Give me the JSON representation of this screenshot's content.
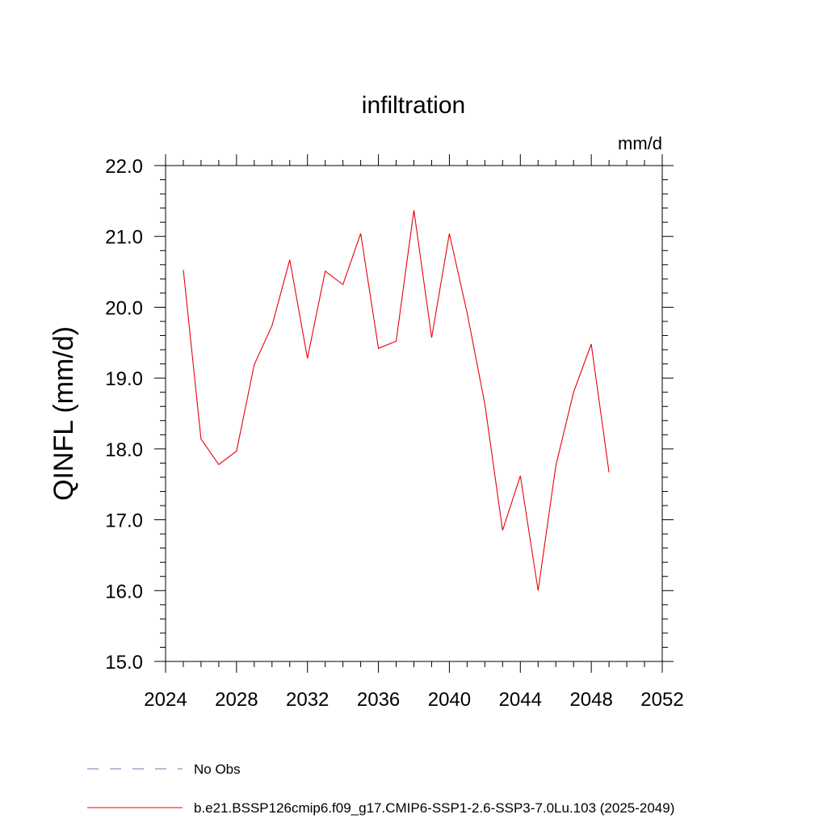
{
  "chart_data": {
    "type": "line",
    "title": "infiltration",
    "units": "mm/d",
    "ylabel": "QINFL  (mm/d)",
    "xlabel": "",
    "xlim": [
      2024,
      2052
    ],
    "ylim": [
      15.0,
      22.0
    ],
    "x_ticks": [
      2024,
      2028,
      2032,
      2036,
      2040,
      2044,
      2048,
      2052
    ],
    "x_tick_labels": [
      "2024",
      "2028",
      "2032",
      "2036",
      "2040",
      "2044",
      "2048",
      "2052"
    ],
    "y_ticks": [
      15.0,
      16.0,
      17.0,
      18.0,
      19.0,
      20.0,
      21.0,
      22.0
    ],
    "y_tick_labels": [
      "15.0",
      "16.0",
      "17.0",
      "18.0",
      "19.0",
      "20.0",
      "21.0",
      "22.0"
    ],
    "grid": false,
    "legend_position": "bottom",
    "series": [
      {
        "name": "b.e21.BSSP126cmip6.f09_g17.CMIP6-SSP1-2.6-SSP3-7.0Lu.103 (2025-2049)",
        "color": "#e8000b",
        "style": "solid",
        "x": [
          2025,
          2026,
          2027,
          2028,
          2029,
          2030,
          2031,
          2032,
          2033,
          2034,
          2035,
          2036,
          2037,
          2038,
          2039,
          2040,
          2041,
          2042,
          2043,
          2044,
          2045,
          2046,
          2047,
          2048,
          2049
        ],
        "y": [
          20.53,
          18.14,
          17.78,
          17.97,
          19.19,
          19.74,
          20.67,
          19.28,
          20.51,
          20.32,
          21.04,
          19.42,
          19.52,
          21.37,
          19.57,
          21.04,
          19.92,
          18.63,
          16.85,
          17.62,
          16.0,
          17.76,
          18.8,
          19.48,
          17.67
        ]
      }
    ],
    "legend": [
      {
        "label": "No Obs",
        "color": "#7a70b8",
        "style": "dashed"
      },
      {
        "label": "b.e21.BSSP126cmip6.f09_g17.CMIP6-SSP1-2.6-SSP3-7.0Lu.103 (2025-2049)",
        "color": "#e8000b",
        "style": "solid"
      }
    ]
  }
}
